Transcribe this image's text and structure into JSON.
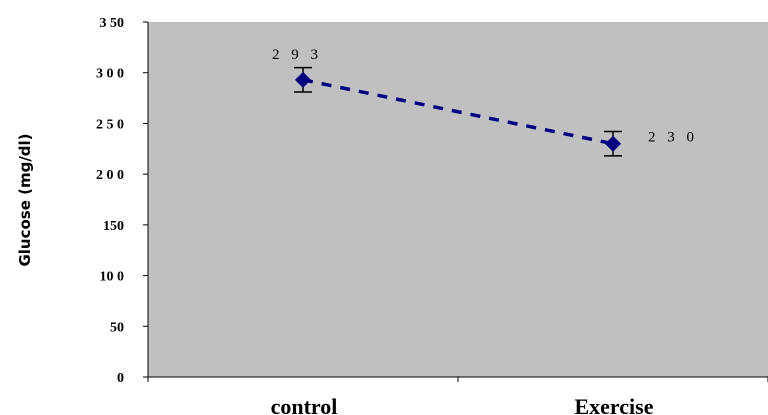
{
  "chart_data": {
    "type": "line",
    "title": "",
    "xlabel": "",
    "ylabel": "Glucose (mg/dl)",
    "categories": [
      "control",
      "Exercise"
    ],
    "series": [
      {
        "values": [
          293,
          230
        ],
        "error": [
          12,
          12
        ],
        "data_labels": [
          "293",
          "230"
        ]
      }
    ],
    "ylim": [
      0,
      350
    ],
    "yticks": [
      0,
      50,
      100,
      150,
      200,
      250,
      300,
      350
    ],
    "ytick_labels": [
      "0",
      "50",
      "10 0",
      "150",
      "2 0 0",
      "2 5 0",
      "3 0 0",
      "3 50"
    ],
    "grid": false,
    "legend": "none",
    "colors": {
      "plot_background": "#c0c0c0",
      "series": "#000080",
      "axis": "#000000"
    }
  }
}
